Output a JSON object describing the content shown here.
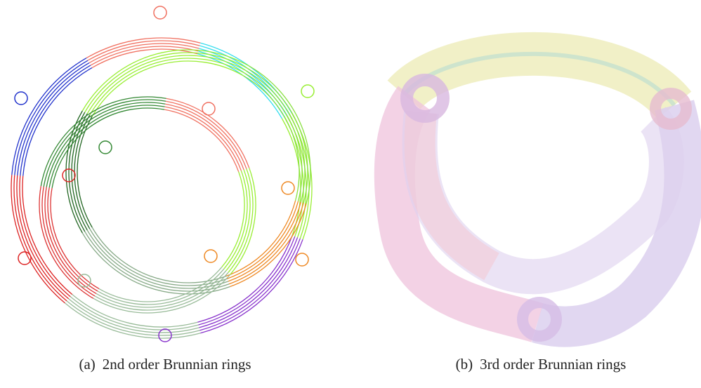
{
  "figures": [
    {
      "label": "(a)",
      "caption": "2nd order Brunnian rings"
    },
    {
      "label": "(b)",
      "caption": "3rd order Brunnian rings"
    }
  ]
}
